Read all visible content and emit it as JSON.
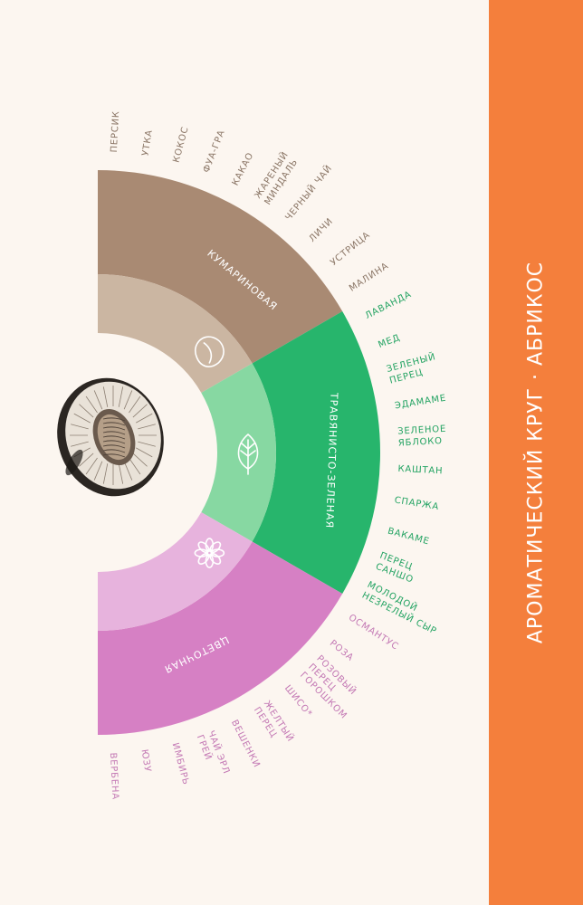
{
  "title": "АРОМАТИЧЕСКИЙ КРУГ · АБРИКОС",
  "illustration": "apricot-half-engraving",
  "categories": [
    {
      "id": "coumarin",
      "name": "КУМАРИНОВАЯ",
      "icon": "bean-icon",
      "outer_color": "#a98a73",
      "inner_color": "#cbb6a2",
      "label_color": "#8a7565",
      "notes": [
        [
          "ПЕРСИК"
        ],
        [
          "УТКА"
        ],
        [
          "КОКОС"
        ],
        [
          "ФУА-ГРА"
        ],
        [
          "КАКАО"
        ],
        [
          "ЖАРЕНЫЙ",
          "МИНДАЛЬ"
        ],
        [
          "ЧЕРНЫЙ ЧАЙ"
        ],
        [
          "ЛИЧИ"
        ],
        [
          "УСТРИЦА"
        ],
        [
          "МАЛИНА"
        ]
      ]
    },
    {
      "id": "herbal",
      "name": "ТРАВЯНИСТО-ЗЕЛЕНАЯ",
      "icon": "leaf-icon",
      "outer_color": "#27b56c",
      "inner_color": "#87d8a2",
      "label_color": "#23a362",
      "notes": [
        [
          "ЛАВАНДА"
        ],
        [
          "МЕД"
        ],
        [
          "ЗЕЛЕНЫЙ",
          "ПЕРЕЦ"
        ],
        [
          "ЭДАМАМЕ"
        ],
        [
          "ЗЕЛЕНОЕ",
          "ЯБЛОКО"
        ],
        [
          "КАШТАН"
        ],
        [
          "СПАРЖА"
        ],
        [
          "ВАКАМЕ"
        ],
        [
          "ПЕРЕЦ",
          "САНШО"
        ],
        [
          "МОЛОДОЙ",
          "НЕЗРЕЛЫЙ СЫР"
        ]
      ]
    },
    {
      "id": "floral",
      "name": "ЦВЕТОЧНАЯ",
      "icon": "flower-icon",
      "outer_color": "#d680c4",
      "inner_color": "#e7b3dd",
      "label_color": "#c378b4",
      "notes": [
        [
          "ОСМАНТУС"
        ],
        [
          "РОЗА"
        ],
        [
          "РОЗОВЫЙ",
          "ПЕРЕЦ",
          "ГОРОШКОМ"
        ],
        [
          "ШИСО*"
        ],
        [
          "ЖЕЛТЫЙ",
          "ПЕРЕЦ"
        ],
        [
          "ВЕШЕНКИ"
        ],
        [
          "ЧАЙ ЭРЛ",
          "ГРЕЙ"
        ],
        [
          "ИМБИРЬ"
        ],
        [
          "ЮЗУ"
        ],
        [
          "ВЕРБЕНА"
        ]
      ]
    }
  ]
}
